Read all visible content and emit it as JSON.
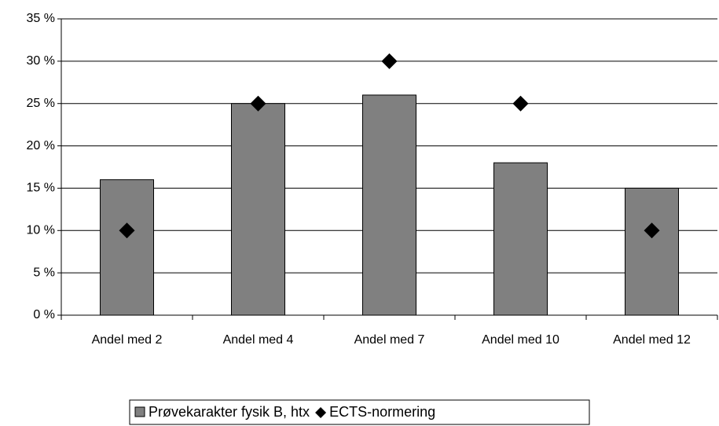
{
  "chart_data": {
    "type": "bar",
    "categories": [
      "Andel med 2",
      "Andel med 4",
      "Andel med 7",
      "Andel med 10",
      "Andel med 12"
    ],
    "series": [
      {
        "name": "Prøvekarakter fysik B, htx",
        "type": "bar",
        "color": "#808080",
        "values": [
          16,
          25,
          26,
          18,
          15
        ]
      },
      {
        "name": "ECTS-normering",
        "type": "scatter",
        "marker": "diamond",
        "color": "#000000",
        "values": [
          10,
          25,
          30,
          25,
          10
        ]
      }
    ],
    "ylim": [
      0,
      35
    ],
    "yticks": [
      {
        "value": 0,
        "label": "0 %"
      },
      {
        "value": 5,
        "label": "5 %"
      },
      {
        "value": 10,
        "label": "10 %"
      },
      {
        "value": 15,
        "label": "15 %"
      },
      {
        "value": 20,
        "label": "20 %"
      },
      {
        "value": 25,
        "label": "25 %"
      },
      {
        "value": 30,
        "label": "30 %"
      },
      {
        "value": 35,
        "label": "35 %"
      }
    ],
    "grid": true,
    "legend": "bottom"
  }
}
